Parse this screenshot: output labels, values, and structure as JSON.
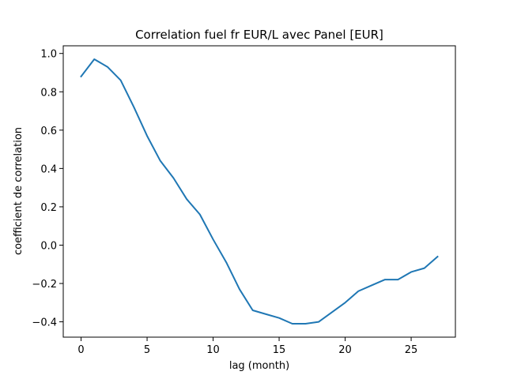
{
  "chart_data": {
    "type": "line",
    "title": "Correlation fuel fr EUR/L avec Panel [EUR]",
    "xlabel": "lag (month)",
    "ylabel": "coefficient de correlation",
    "xlim": [
      -1.35,
      28.35
    ],
    "ylim": [
      -0.48,
      1.04
    ],
    "xticks": [
      0,
      5,
      10,
      15,
      20,
      25
    ],
    "yticks": [
      -0.4,
      -0.2,
      0.0,
      0.2,
      0.4,
      0.6,
      0.8,
      1.0
    ],
    "xtick_labels": [
      "0",
      "5",
      "10",
      "15",
      "20",
      "25"
    ],
    "ytick_labels": [
      "−0.4",
      "−0.2",
      "0.0",
      "0.2",
      "0.4",
      "0.6",
      "0.8",
      "1.0"
    ],
    "grid": false,
    "series": [
      {
        "color": "#1f77b4",
        "x": [
          0,
          1,
          2,
          3,
          4,
          5,
          6,
          7,
          8,
          9,
          10,
          11,
          12,
          13,
          14,
          15,
          16,
          17,
          18,
          19,
          20,
          21,
          22,
          23,
          24,
          25,
          26,
          27
        ],
        "y": [
          0.88,
          0.97,
          0.93,
          0.86,
          0.72,
          0.57,
          0.44,
          0.35,
          0.24,
          0.16,
          0.03,
          -0.09,
          -0.23,
          -0.34,
          -0.36,
          -0.38,
          -0.41,
          -0.41,
          -0.4,
          -0.35,
          -0.3,
          -0.24,
          -0.21,
          -0.18,
          -0.18,
          -0.14,
          -0.12,
          -0.06
        ]
      }
    ]
  }
}
